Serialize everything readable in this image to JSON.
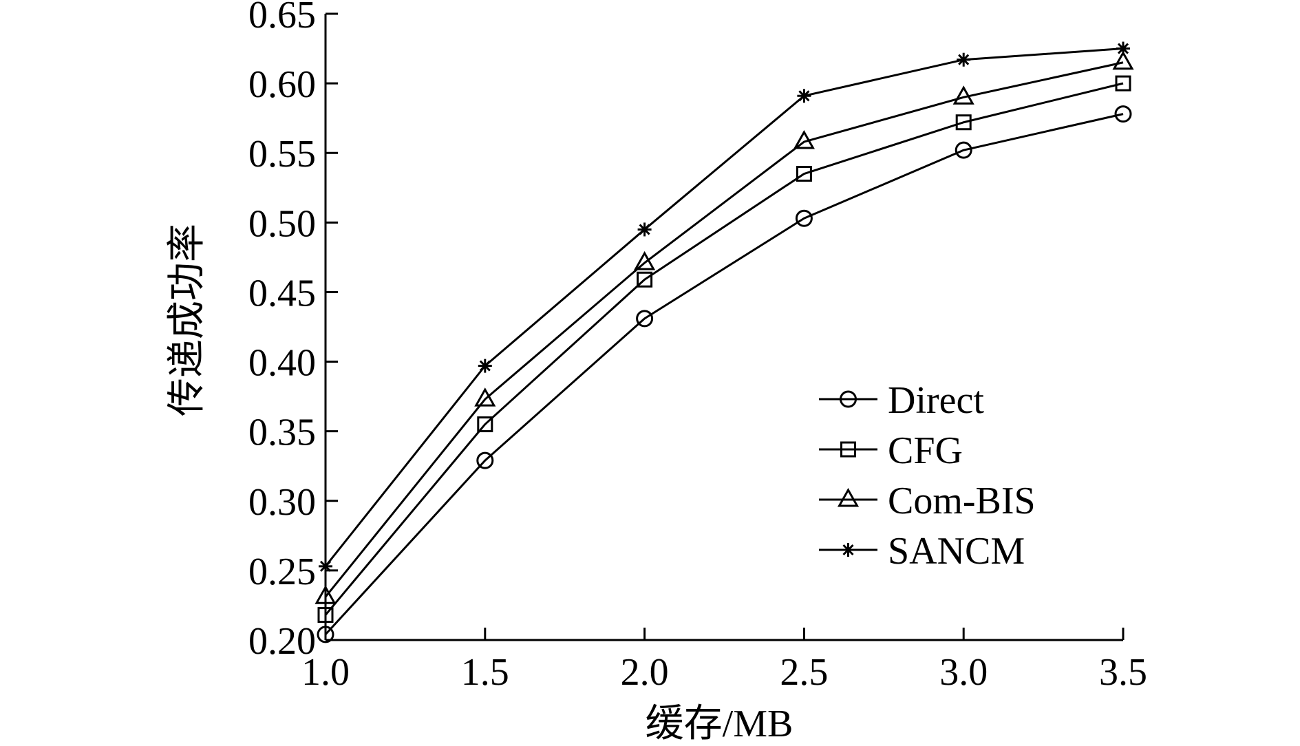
{
  "chart_data": {
    "type": "line",
    "xlabel": "缓存/MB",
    "ylabel": "传递成功率",
    "x": [
      1.0,
      1.5,
      2.0,
      2.5,
      3.0,
      3.5
    ],
    "xlim": [
      1.0,
      3.5
    ],
    "ylim": [
      0.2,
      0.65
    ],
    "x_ticks": [
      "1.0",
      "1.5",
      "2.0",
      "2.5",
      "3.0",
      "3.5"
    ],
    "y_ticks": [
      "0.20",
      "0.25",
      "0.30",
      "0.35",
      "0.40",
      "0.45",
      "0.50",
      "0.55",
      "0.60",
      "0.65"
    ],
    "grid": false,
    "legend_position": "center-right",
    "series": [
      {
        "name": "Direct",
        "marker": "circle",
        "values": [
          0.204,
          0.329,
          0.431,
          0.503,
          0.552,
          0.578
        ]
      },
      {
        "name": "CFG",
        "marker": "square",
        "values": [
          0.218,
          0.355,
          0.459,
          0.535,
          0.572,
          0.6
        ]
      },
      {
        "name": "Com-BIS",
        "marker": "triangle",
        "values": [
          0.231,
          0.373,
          0.471,
          0.558,
          0.59,
          0.615
        ]
      },
      {
        "name": "SANCM",
        "marker": "star",
        "values": [
          0.253,
          0.397,
          0.495,
          0.591,
          0.617,
          0.625
        ]
      }
    ],
    "line_color": "#000000"
  }
}
